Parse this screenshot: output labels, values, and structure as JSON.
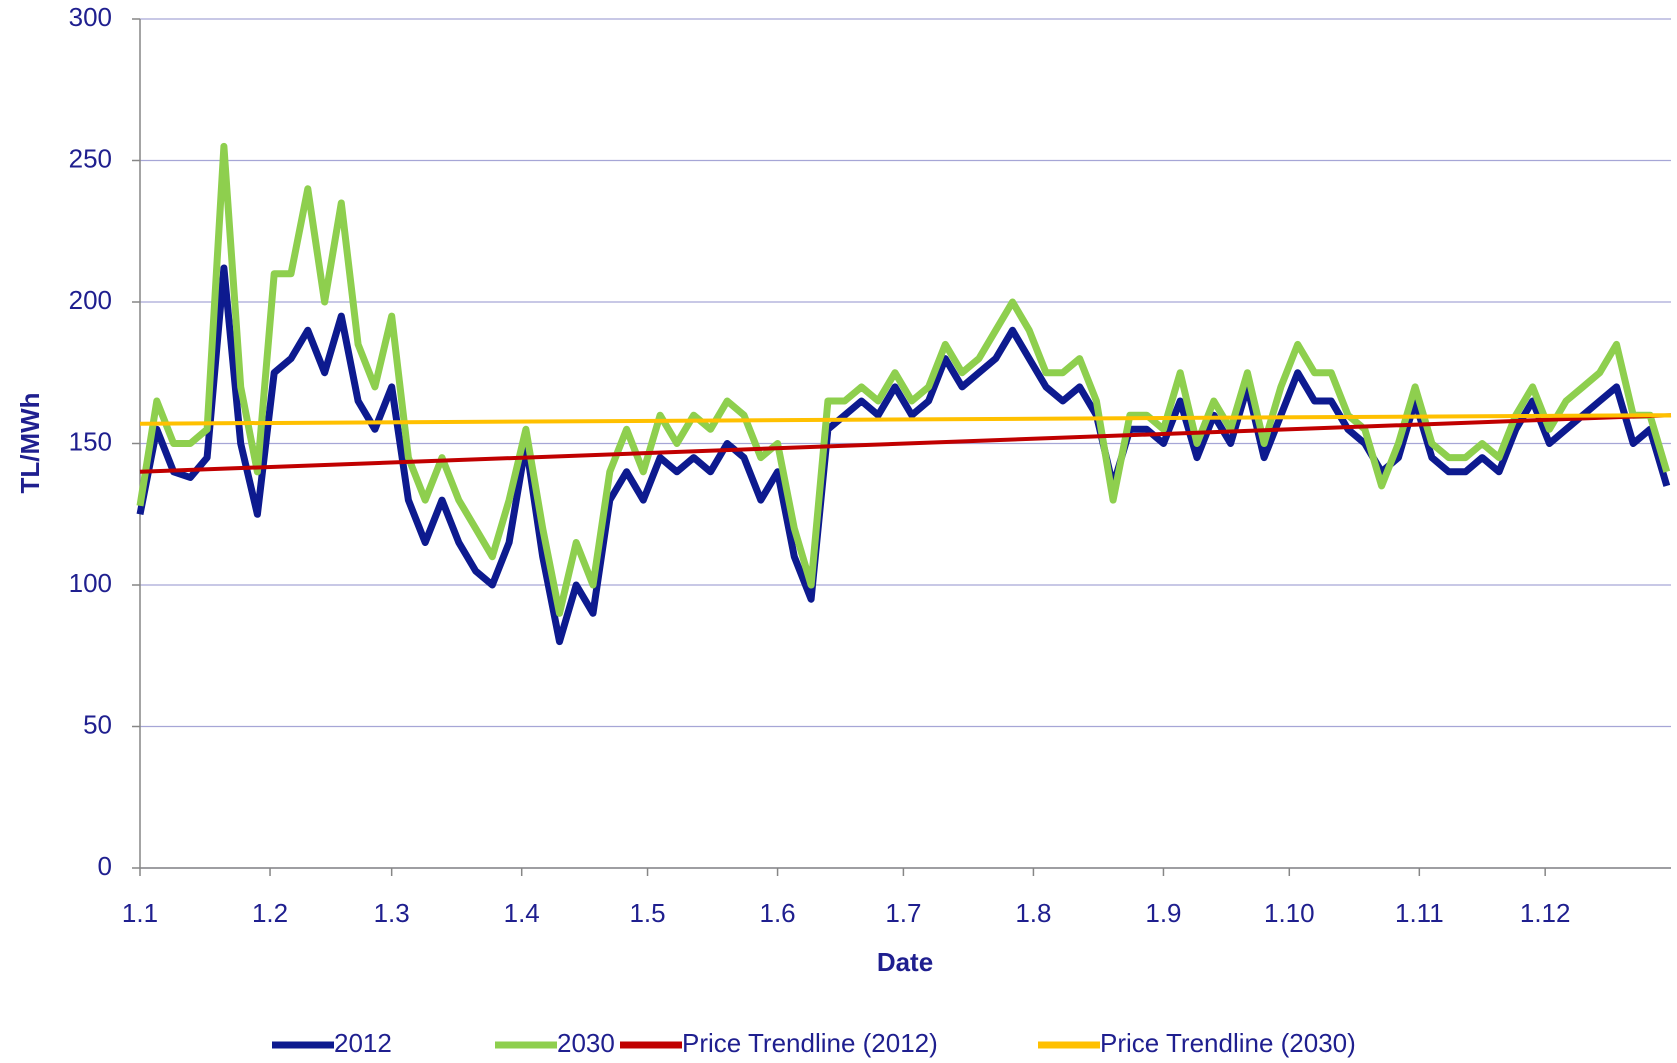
{
  "chart_data": {
    "type": "line",
    "xlabel": "Date",
    "ylabel": "TL/MWh",
    "x": [
      0,
      4,
      8,
      12,
      16,
      20,
      24,
      28,
      32,
      36,
      40,
      44,
      48,
      52,
      56,
      60,
      64,
      68,
      72,
      76,
      80,
      84,
      88,
      92,
      96,
      100,
      104,
      108,
      112,
      116,
      120,
      124,
      128,
      132,
      136,
      140,
      144,
      148,
      152,
      156,
      160,
      164,
      168,
      172,
      176,
      180,
      184,
      188,
      192,
      196,
      200,
      204,
      208,
      212,
      216,
      220,
      224,
      228,
      232,
      236,
      240,
      244,
      248,
      252,
      256,
      260,
      264,
      268,
      272,
      276,
      280,
      284,
      288,
      292,
      296,
      300,
      304,
      308,
      312,
      316,
      320,
      324,
      328,
      332,
      336,
      340,
      344,
      348,
      352,
      356,
      360,
      364
    ],
    "series": [
      {
        "name": "2012",
        "color": "#0d1a8f",
        "width": 7,
        "values": [
          125,
          155,
          140,
          138,
          145,
          212,
          150,
          125,
          175,
          180,
          190,
          175,
          195,
          165,
          155,
          170,
          130,
          115,
          130,
          115,
          105,
          100,
          115,
          150,
          110,
          80,
          100,
          90,
          130,
          140,
          130,
          145,
          140,
          145,
          140,
          150,
          145,
          130,
          140,
          110,
          95,
          155,
          160,
          165,
          160,
          170,
          160,
          165,
          180,
          170,
          175,
          180,
          190,
          180,
          170,
          165,
          170,
          160,
          135,
          155,
          155,
          150,
          165,
          145,
          160,
          150,
          170,
          145,
          160,
          175,
          165,
          165,
          155,
          150,
          140,
          145,
          165,
          145,
          140,
          140,
          145,
          140,
          155,
          165,
          150,
          155,
          160,
          165,
          170,
          150,
          155,
          135
        ]
      },
      {
        "name": "2030",
        "color": "#8ecf4e",
        "width": 7,
        "values": [
          128,
          165,
          150,
          150,
          155,
          255,
          170,
          140,
          210,
          210,
          240,
          200,
          235,
          185,
          170,
          195,
          145,
          130,
          145,
          130,
          120,
          110,
          130,
          155,
          120,
          90,
          115,
          100,
          140,
          155,
          140,
          160,
          150,
          160,
          155,
          165,
          160,
          145,
          150,
          120,
          100,
          165,
          165,
          170,
          165,
          175,
          165,
          170,
          185,
          175,
          180,
          190,
          200,
          190,
          175,
          175,
          180,
          165,
          130,
          160,
          160,
          155,
          175,
          150,
          165,
          155,
          175,
          150,
          170,
          185,
          175,
          175,
          160,
          155,
          135,
          150,
          170,
          150,
          145,
          145,
          150,
          145,
          160,
          170,
          155,
          165,
          170,
          175,
          185,
          160,
          160,
          140
        ]
      },
      {
        "name": "Price Trendline (2012)",
        "color": "#c00000",
        "width": 4,
        "x": [
          0,
          365
        ],
        "values": [
          140,
          160
        ]
      },
      {
        "name": "Price Trendline (2030)",
        "color": "#ffc000",
        "width": 4,
        "x": [
          0,
          365
        ],
        "values": [
          157,
          160
        ]
      }
    ],
    "xlim": [
      0,
      365
    ],
    "xticks": [
      {
        "value": 0,
        "label": "1.1"
      },
      {
        "value": 31,
        "label": "1.2"
      },
      {
        "value": 60,
        "label": "1.3"
      },
      {
        "value": 91,
        "label": "1.4"
      },
      {
        "value": 121,
        "label": "1.5"
      },
      {
        "value": 152,
        "label": "1.6"
      },
      {
        "value": 182,
        "label": "1.7"
      },
      {
        "value": 213,
        "label": "1.8"
      },
      {
        "value": 244,
        "label": "1.9"
      },
      {
        "value": 274,
        "label": "1.10"
      },
      {
        "value": 305,
        "label": "1.11"
      },
      {
        "value": 335,
        "label": "1.12"
      }
    ],
    "ylim": [
      0,
      300
    ],
    "yticks": [
      0,
      50,
      100,
      150,
      200,
      250,
      300
    ],
    "grid": true,
    "legend": "bottom"
  }
}
